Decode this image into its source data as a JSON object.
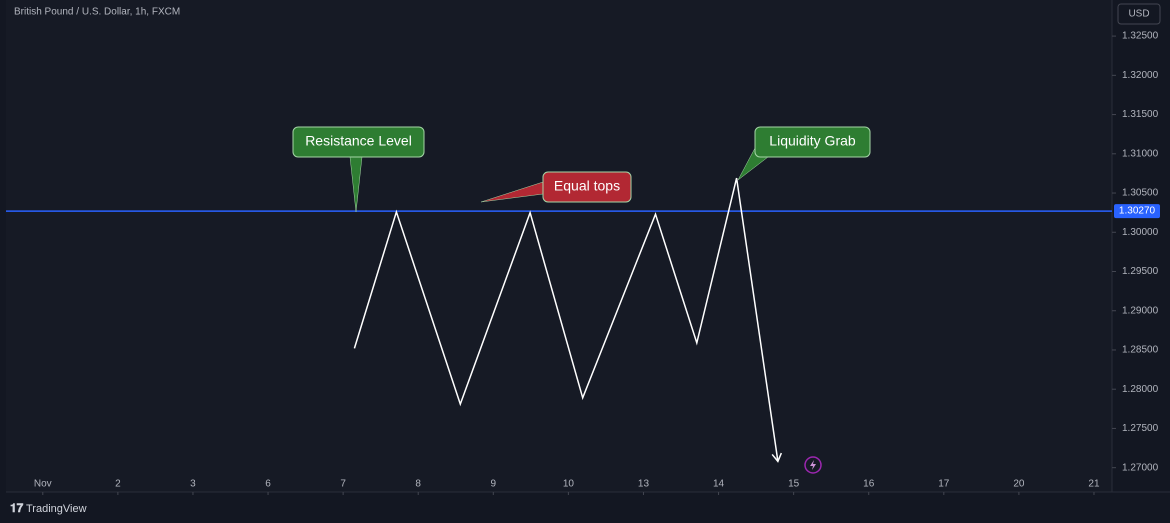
{
  "chart_data": {
    "type": "line",
    "title": "British Pound / U.S. Dollar, 1h, FXCM",
    "currency": "USD",
    "brand": "TradingView",
    "x": [
      4.15,
      4.71,
      5.56,
      6.49,
      7.19,
      8.16,
      8.71,
      9.24,
      9.79
    ],
    "series": [
      {
        "color": "#ffffff",
        "values": [
          1.2852,
          1.3026,
          1.2781,
          1.3025,
          1.2789,
          1.3023,
          1.2859,
          1.3069,
          1.2708
        ]
      }
    ],
    "xlim": [
      -0.49,
      14.24
    ],
    "xticks": [
      {
        "value": 0,
        "label": "Nov"
      },
      {
        "value": 1,
        "label": "2"
      },
      {
        "value": 2,
        "label": "3"
      },
      {
        "value": 3,
        "label": "6"
      },
      {
        "value": 4,
        "label": "7"
      },
      {
        "value": 5,
        "label": "8"
      },
      {
        "value": 6,
        "label": "9"
      },
      {
        "value": 7,
        "label": "10"
      },
      {
        "value": 8,
        "label": "13"
      },
      {
        "value": 9,
        "label": "14"
      },
      {
        "value": 10,
        "label": "15"
      },
      {
        "value": 11,
        "label": "16"
      },
      {
        "value": 12,
        "label": "17"
      },
      {
        "value": 13,
        "label": "20"
      },
      {
        "value": 14,
        "label": "21"
      }
    ],
    "ylim": [
      1.2669,
      1.3296
    ],
    "yticks": [
      {
        "value": 1.27,
        "label": "1.27000"
      },
      {
        "value": 1.275,
        "label": "1.27500"
      },
      {
        "value": 1.28,
        "label": "1.28000"
      },
      {
        "value": 1.285,
        "label": "1.28500"
      },
      {
        "value": 1.29,
        "label": "1.29000"
      },
      {
        "value": 1.295,
        "label": "1.29500"
      },
      {
        "value": 1.3,
        "label": "1.30000"
      },
      {
        "value": 1.305,
        "label": "1.30500"
      },
      {
        "value": 1.31,
        "label": "1.31000"
      },
      {
        "value": 1.315,
        "label": "1.31500"
      },
      {
        "value": 1.32,
        "label": "1.32000"
      },
      {
        "value": 1.325,
        "label": "1.32500"
      }
    ],
    "hline": {
      "value": 1.3027,
      "label": "1.30270",
      "color": "#2962ff"
    },
    "annotations": [
      {
        "text": "Resistance Level",
        "color": "#2e7d32"
      },
      {
        "text": "Equal tops",
        "color": "#b22833"
      },
      {
        "text": "Liquidity Grab",
        "color": "#2e7d32"
      }
    ],
    "grid": false
  }
}
